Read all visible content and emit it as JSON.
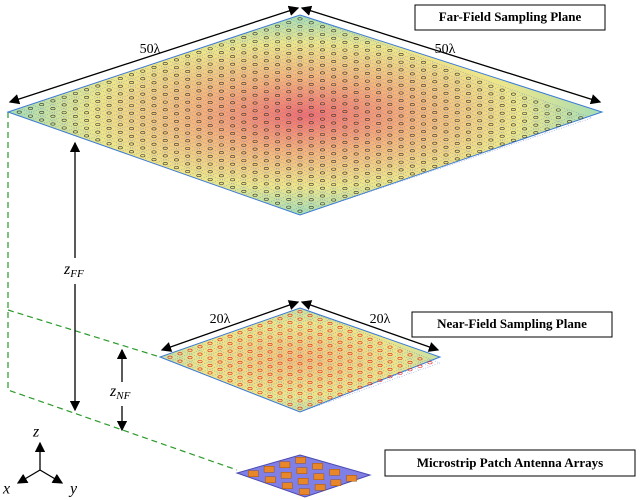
{
  "far_field": {
    "label": "Far-Field Sampling Plane",
    "side_a": "50λ",
    "side_b": "50λ",
    "distance": {
      "main": "z",
      "sub": "FF"
    }
  },
  "near_field": {
    "label": "Near-Field Sampling Plane",
    "side_a": "20λ",
    "side_b": "20λ",
    "distance": {
      "main": "z",
      "sub": "NF"
    }
  },
  "antenna": {
    "label": "Microstrip Patch Antenna Arrays"
  },
  "axes": {
    "x": "x",
    "y": "y",
    "z": "z"
  }
}
